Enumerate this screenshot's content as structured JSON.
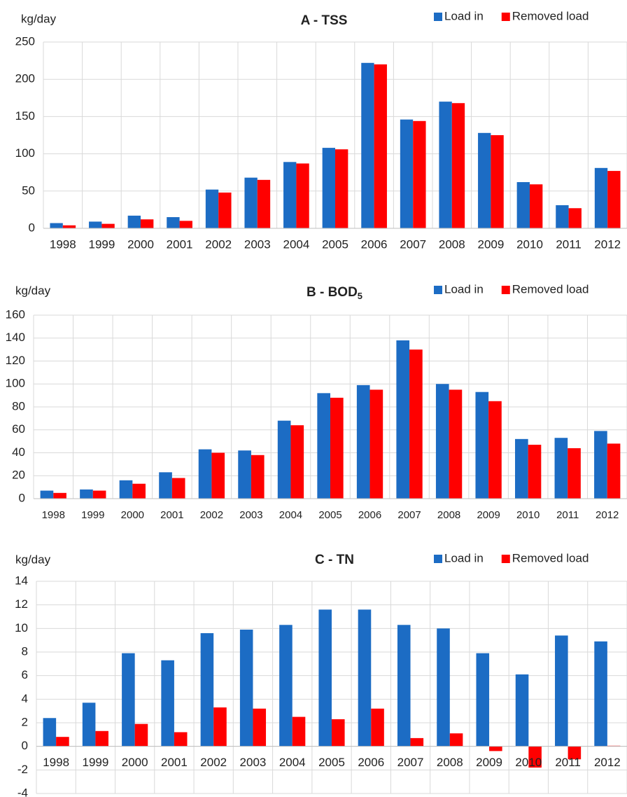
{
  "chart_data": [
    {
      "type": "bar",
      "title": "A - TSS",
      "y_label": "kg/day",
      "categories": [
        "1998",
        "1999",
        "2000",
        "2001",
        "2002",
        "2003",
        "2004",
        "2005",
        "2006",
        "2007",
        "2008",
        "2009",
        "2010",
        "2011",
        "2012"
      ],
      "series": [
        {
          "name": "Load in",
          "color": "#1c6cc4",
          "values": [
            7,
            9,
            17,
            15,
            52,
            68,
            89,
            108,
            222,
            146,
            170,
            128,
            62,
            31,
            81
          ]
        },
        {
          "name": "Removed load",
          "color": "#ff0000",
          "values": [
            4,
            6,
            12,
            10,
            48,
            65,
            87,
            106,
            220,
            144,
            168,
            125,
            59,
            27,
            77
          ]
        }
      ],
      "ylim": [
        0,
        250
      ],
      "yticks": [
        0,
        50,
        100,
        150,
        200,
        250
      ],
      "grid": true,
      "legend": "top-right"
    },
    {
      "type": "bar",
      "title": "B - BOD",
      "title_subscript": "5",
      "y_label": "kg/day",
      "categories": [
        "1998",
        "1999",
        "2000",
        "2001",
        "2002",
        "2003",
        "2004",
        "2005",
        "2006",
        "2007",
        "2008",
        "2009",
        "2010",
        "2011",
        "2012"
      ],
      "series": [
        {
          "name": "Load in",
          "color": "#1c6cc4",
          "values": [
            7,
            8,
            16,
            23,
            43,
            42,
            68,
            92,
            99,
            138,
            100,
            93,
            52,
            53,
            59
          ]
        },
        {
          "name": "Removed load",
          "color": "#ff0000",
          "values": [
            5,
            7,
            13,
            18,
            40,
            38,
            64,
            88,
            95,
            130,
            95,
            85,
            47,
            44,
            48
          ]
        }
      ],
      "ylim": [
        0,
        160
      ],
      "yticks": [
        0,
        20,
        40,
        60,
        80,
        100,
        120,
        140,
        160
      ],
      "grid": true,
      "legend": "top-right"
    },
    {
      "type": "bar",
      "title": "C - TN",
      "y_label": "kg/day",
      "categories": [
        "1998",
        "1999",
        "2000",
        "2001",
        "2002",
        "2003",
        "2004",
        "2005",
        "2006",
        "2007",
        "2008",
        "2009",
        "2010",
        "2011",
        "2012"
      ],
      "series": [
        {
          "name": "Load in",
          "color": "#1c6cc4",
          "values": [
            2.4,
            3.7,
            7.9,
            7.3,
            9.6,
            9.9,
            10.3,
            11.6,
            11.6,
            10.3,
            10.0,
            7.9,
            6.1,
            9.4,
            8.9
          ]
        },
        {
          "name": "Removed load",
          "color": "#ff0000",
          "values": [
            0.8,
            1.3,
            1.9,
            1.2,
            3.3,
            3.2,
            2.5,
            2.3,
            3.2,
            0.7,
            1.1,
            -0.4,
            -1.8,
            -1.1,
            0.05
          ]
        }
      ],
      "ylim": [
        -4,
        14
      ],
      "yticks": [
        -4,
        -2,
        0,
        2,
        4,
        6,
        8,
        10,
        12,
        14
      ],
      "grid": true,
      "legend": "top-right"
    }
  ]
}
